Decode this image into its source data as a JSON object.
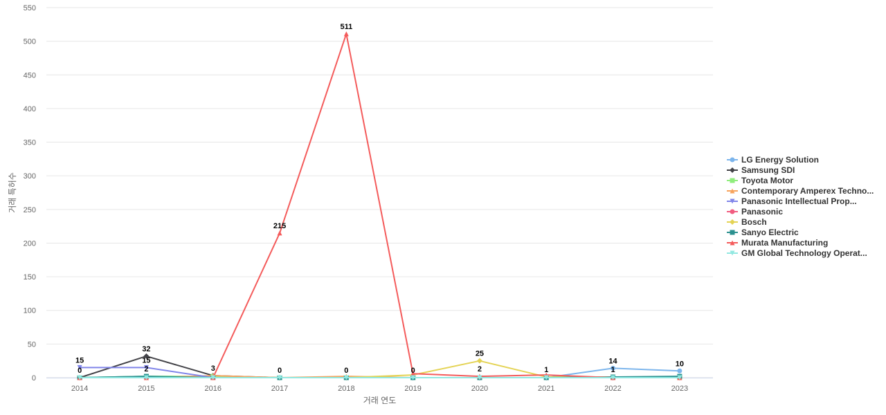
{
  "chart_data": {
    "type": "line",
    "title": "",
    "xlabel": "거래 연도",
    "ylabel": "거래 특허수",
    "ylim": [
      0,
      550
    ],
    "yticks": [
      0,
      50,
      100,
      150,
      200,
      250,
      300,
      350,
      400,
      450,
      500,
      550
    ],
    "grid": true,
    "legend_position": "right",
    "categories": [
      "2014",
      "2015",
      "2016",
      "2017",
      "2018",
      "2019",
      "2020",
      "2021",
      "2022",
      "2023"
    ],
    "series": [
      {
        "name": "LG Energy Solution",
        "color": "#7cb5ec",
        "marker": "circle",
        "values": [
          0,
          2,
          0,
          0,
          0,
          0,
          0,
          0,
          14,
          10
        ]
      },
      {
        "name": "Samsung SDI",
        "color": "#434348",
        "marker": "diamond",
        "values": [
          0,
          32,
          3,
          0,
          0,
          0,
          0,
          0,
          0,
          0
        ]
      },
      {
        "name": "Toyota Motor",
        "color": "#90ed7d",
        "marker": "square",
        "values": [
          0,
          2,
          2,
          0,
          0,
          0,
          0,
          0,
          0,
          0
        ]
      },
      {
        "name": "Contemporary Amperex Techno...",
        "color": "#f7a35c",
        "marker": "triangle",
        "values": [
          0,
          0,
          3,
          0,
          2,
          0,
          0,
          0,
          0,
          0
        ]
      },
      {
        "name": "Panasonic Intellectual Prop...",
        "color": "#8085e9",
        "marker": "triangle-down",
        "values": [
          15,
          15,
          0,
          0,
          0,
          0,
          0,
          0,
          0,
          0
        ]
      },
      {
        "name": "Panasonic",
        "color": "#f15c80",
        "marker": "circle",
        "values": [
          0,
          0,
          0,
          0,
          0,
          0,
          0,
          0,
          0,
          0
        ]
      },
      {
        "name": "Bosch",
        "color": "#e4d354",
        "marker": "diamond",
        "values": [
          0,
          0,
          0,
          0,
          0,
          4,
          25,
          1,
          1,
          0
        ]
      },
      {
        "name": "Sanyo Electric",
        "color": "#2b908f",
        "marker": "square",
        "values": [
          0,
          2,
          0,
          0,
          0,
          0,
          0,
          0,
          1,
          2
        ]
      },
      {
        "name": "Murata Manufacturing",
        "color": "#f45b5b",
        "marker": "triangle",
        "values": [
          0,
          0,
          0,
          215,
          511,
          6,
          2,
          4,
          0,
          0
        ]
      },
      {
        "name": "GM Global Technology Operat...",
        "color": "#91e8e1",
        "marker": "triangle-down",
        "values": [
          0,
          0,
          0,
          0,
          0,
          0,
          0,
          0,
          0,
          0
        ]
      }
    ],
    "data_labels": [
      {
        "category": "2014",
        "value": 15,
        "text": "15"
      },
      {
        "category": "2014",
        "value": 0,
        "text": "0"
      },
      {
        "category": "2015",
        "value": 32,
        "text": "32"
      },
      {
        "category": "2015",
        "value": 15,
        "text": "15"
      },
      {
        "category": "2015",
        "value": 2,
        "text": "2"
      },
      {
        "category": "2016",
        "value": 3,
        "text": "3"
      },
      {
        "category": "2017",
        "value": 215,
        "text": "215"
      },
      {
        "category": "2017",
        "value": 0,
        "text": "0"
      },
      {
        "category": "2018",
        "value": 511,
        "text": "511"
      },
      {
        "category": "2018",
        "value": 0,
        "text": "0"
      },
      {
        "category": "2019",
        "value": 0,
        "text": "0"
      },
      {
        "category": "2020",
        "value": 25,
        "text": "25"
      },
      {
        "category": "2020",
        "value": 2,
        "text": "2"
      },
      {
        "category": "2021",
        "value": 1,
        "text": "1"
      },
      {
        "category": "2022",
        "value": 14,
        "text": "14"
      },
      {
        "category": "2022",
        "value": 1,
        "text": "1"
      },
      {
        "category": "2023",
        "value": 10,
        "text": "10"
      }
    ]
  }
}
